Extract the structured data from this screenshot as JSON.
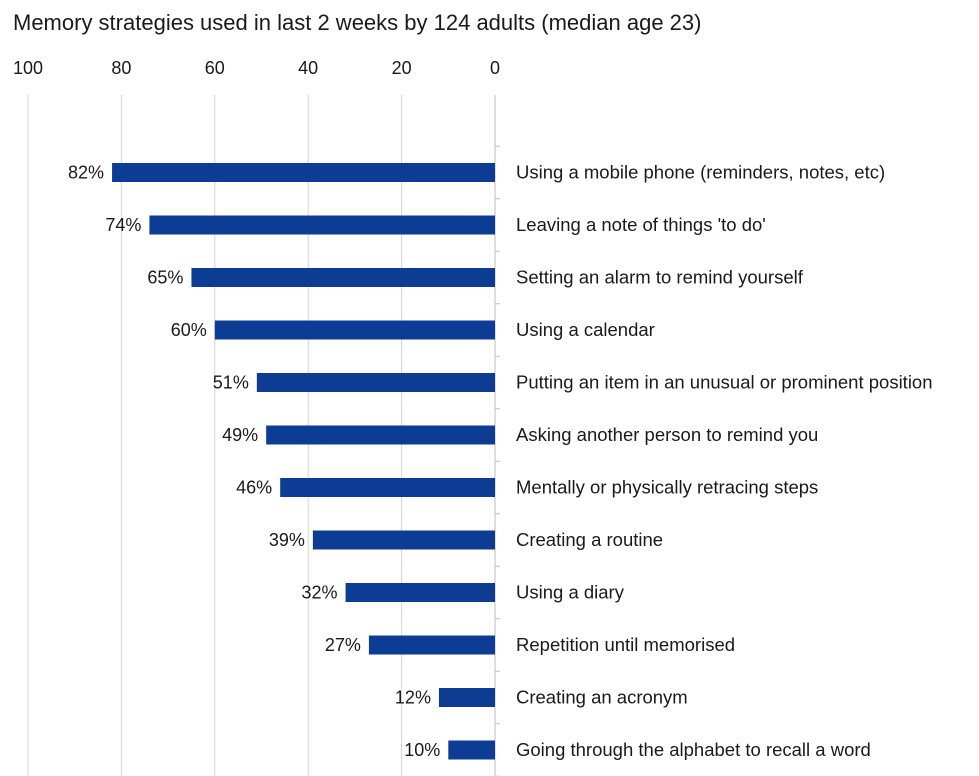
{
  "chart_data": {
    "type": "bar",
    "orientation": "horizontal",
    "x_axis_reversed": true,
    "title": "Memory strategies used in last 2 weeks by 124 adults (median age 23)",
    "xlim": [
      0,
      100
    ],
    "x_ticks": [
      100,
      80,
      60,
      40,
      20,
      0
    ],
    "grid": "vertical",
    "bar_color": "#0d3c94",
    "value_suffix": "%",
    "categories": [
      "Using a mobile phone (reminders, notes, etc)",
      "Leaving a note of things 'to do'",
      "Setting an alarm to remind yourself",
      "Using a calendar",
      "Putting an item in an unusual or prominent position",
      "Asking another person to remind you",
      "Mentally or physically retracing steps",
      "Creating a routine",
      "Using a diary",
      "Repetition until memorised",
      "Creating an acronym",
      "Going through the alphabet to recall a word"
    ],
    "values": [
      82,
      74,
      65,
      60,
      51,
      49,
      46,
      39,
      32,
      27,
      12,
      10
    ]
  }
}
